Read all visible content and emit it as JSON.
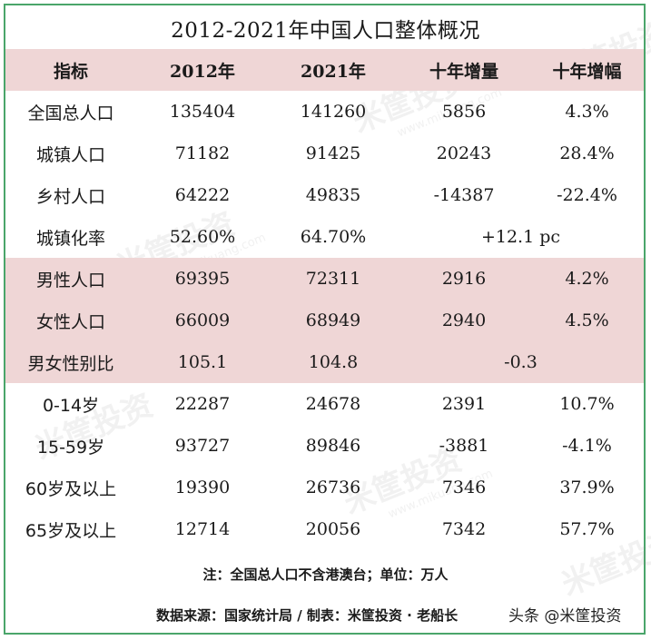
{
  "title": "2012-2021年中国人口整体概况",
  "watermark": {
    "name": "米筐投资",
    "url": "www.mikuang.com"
  },
  "headers": [
    "指标",
    "2012年",
    "2021年",
    "十年增量",
    "十年增幅"
  ],
  "rows": [
    {
      "label": "全国总人口",
      "v2012": "135404",
      "v2021": "141260",
      "inc": "5856",
      "pct": "4.3%",
      "band": false
    },
    {
      "label": "城镇人口",
      "v2012": "71182",
      "v2021": "91425",
      "inc": "20243",
      "pct": "28.4%",
      "band": false
    },
    {
      "label": "乡村人口",
      "v2012": "64222",
      "v2021": "49835",
      "inc": "-14387",
      "pct": "-22.4%",
      "band": false
    },
    {
      "label": "城镇化率",
      "v2012": "52.60%",
      "v2021": "64.70%",
      "merged": "+12.1 pc",
      "band": false
    },
    {
      "label": "男性人口",
      "v2012": "69395",
      "v2021": "72311",
      "inc": "2916",
      "pct": "4.2%",
      "band": true
    },
    {
      "label": "女性人口",
      "v2012": "66009",
      "v2021": "68949",
      "inc": "2940",
      "pct": "4.5%",
      "band": true
    },
    {
      "label": "男女性别比",
      "v2012": "105.1",
      "v2021": "104.8",
      "merged": "-0.3",
      "band": true
    },
    {
      "label": "0-14岁",
      "v2012": "22287",
      "v2021": "24678",
      "inc": "2391",
      "pct": "10.7%",
      "band": false
    },
    {
      "label": "15-59岁",
      "v2012": "93727",
      "v2021": "89846",
      "inc": "-3881",
      "pct": "-4.1%",
      "band": false
    },
    {
      "label": "60岁及以上",
      "v2012": "19390",
      "v2021": "26736",
      "inc": "7346",
      "pct": "37.9%",
      "band": false
    },
    {
      "label": "65岁及以上",
      "v2012": "12714",
      "v2021": "20056",
      "inc": "7342",
      "pct": "57.7%",
      "band": false
    }
  ],
  "note": "注：全国总人口不含港澳台；单位：万人",
  "source": "数据来源：国家统计局 / 制表：米筐投资 · 老船长",
  "brand": "头条 @米筐投资",
  "colors": {
    "border": "#4aa56a",
    "band": "#efd6d6",
    "text": "#1a1a1a"
  }
}
